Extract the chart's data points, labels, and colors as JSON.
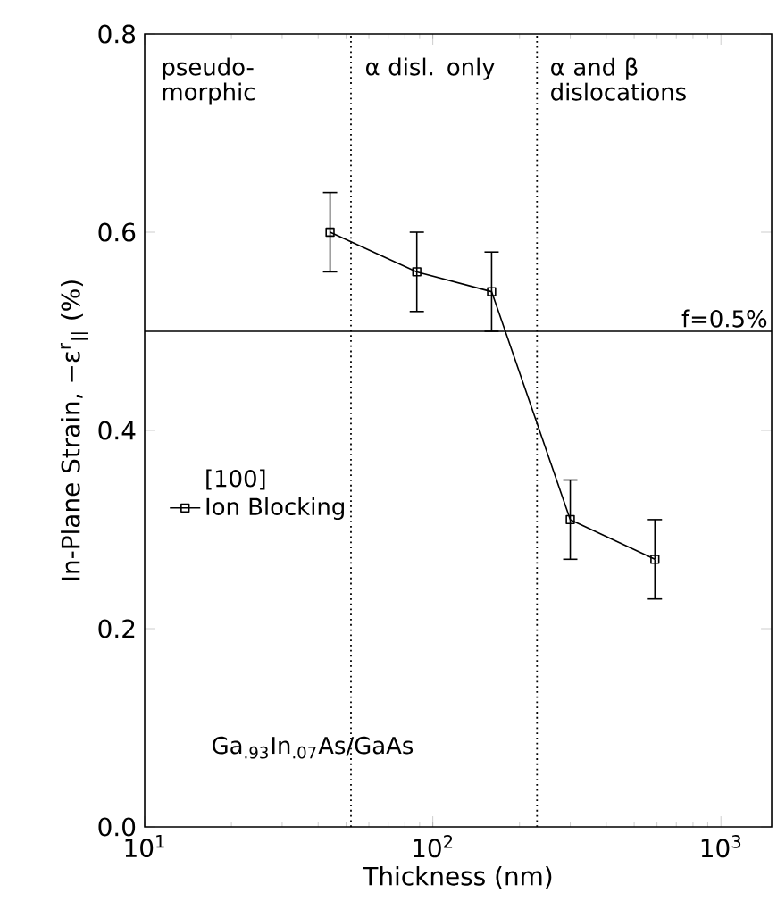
{
  "chart_data": {
    "type": "line",
    "xlabel": "Thickness (nm)",
    "ylabel": "In-Plane Strain, −ε$^{r}$$_{||}$ (%)",
    "log": "x",
    "xlim": [
      10,
      1500
    ],
    "xticks": [
      {
        "value": 10,
        "label": "10$^{1}$"
      },
      {
        "value": 100,
        "label": "10$^{2}$"
      },
      {
        "value": 1000,
        "label": "10$^{3}$"
      }
    ],
    "ylim": [
      0,
      0.8
    ],
    "yticks": [
      {
        "value": 0,
        "label": "0.0"
      },
      {
        "value": 0.2,
        "label": "0.2"
      },
      {
        "value": 0.4,
        "label": "0.4"
      },
      {
        "value": 0.6,
        "label": "0.6"
      },
      {
        "value": 0.8,
        "label": "0.8"
      }
    ],
    "legend_title": "[100]",
    "legend": "left",
    "marker": "square",
    "line_style": "solid",
    "series": [
      {
        "name": "Ion Blocking",
        "color": "#000000",
        "x": [
          44,
          88,
          160,
          300,
          590
        ],
        "values": [
          0.6,
          0.56,
          0.54,
          0.31,
          0.27
        ],
        "errors": [
          0.04,
          0.04,
          0.04,
          0.04,
          0.04
        ]
      }
    ],
    "ref_lines": [
      {
        "axis": "y",
        "value": 0.5,
        "label": "f=0.5%",
        "line_style": "solid"
      },
      {
        "axis": "x",
        "value": 52,
        "label": null,
        "line_style": "dotted"
      },
      {
        "axis": "x",
        "value": 230,
        "label": null,
        "line_style": "dotted"
      }
    ],
    "annotations": [
      "pseudo-morphic",
      "α disl. only",
      "α and β dislocations",
      "Ga$_{.93}$In$_{.07}$As/GaAs"
    ]
  }
}
